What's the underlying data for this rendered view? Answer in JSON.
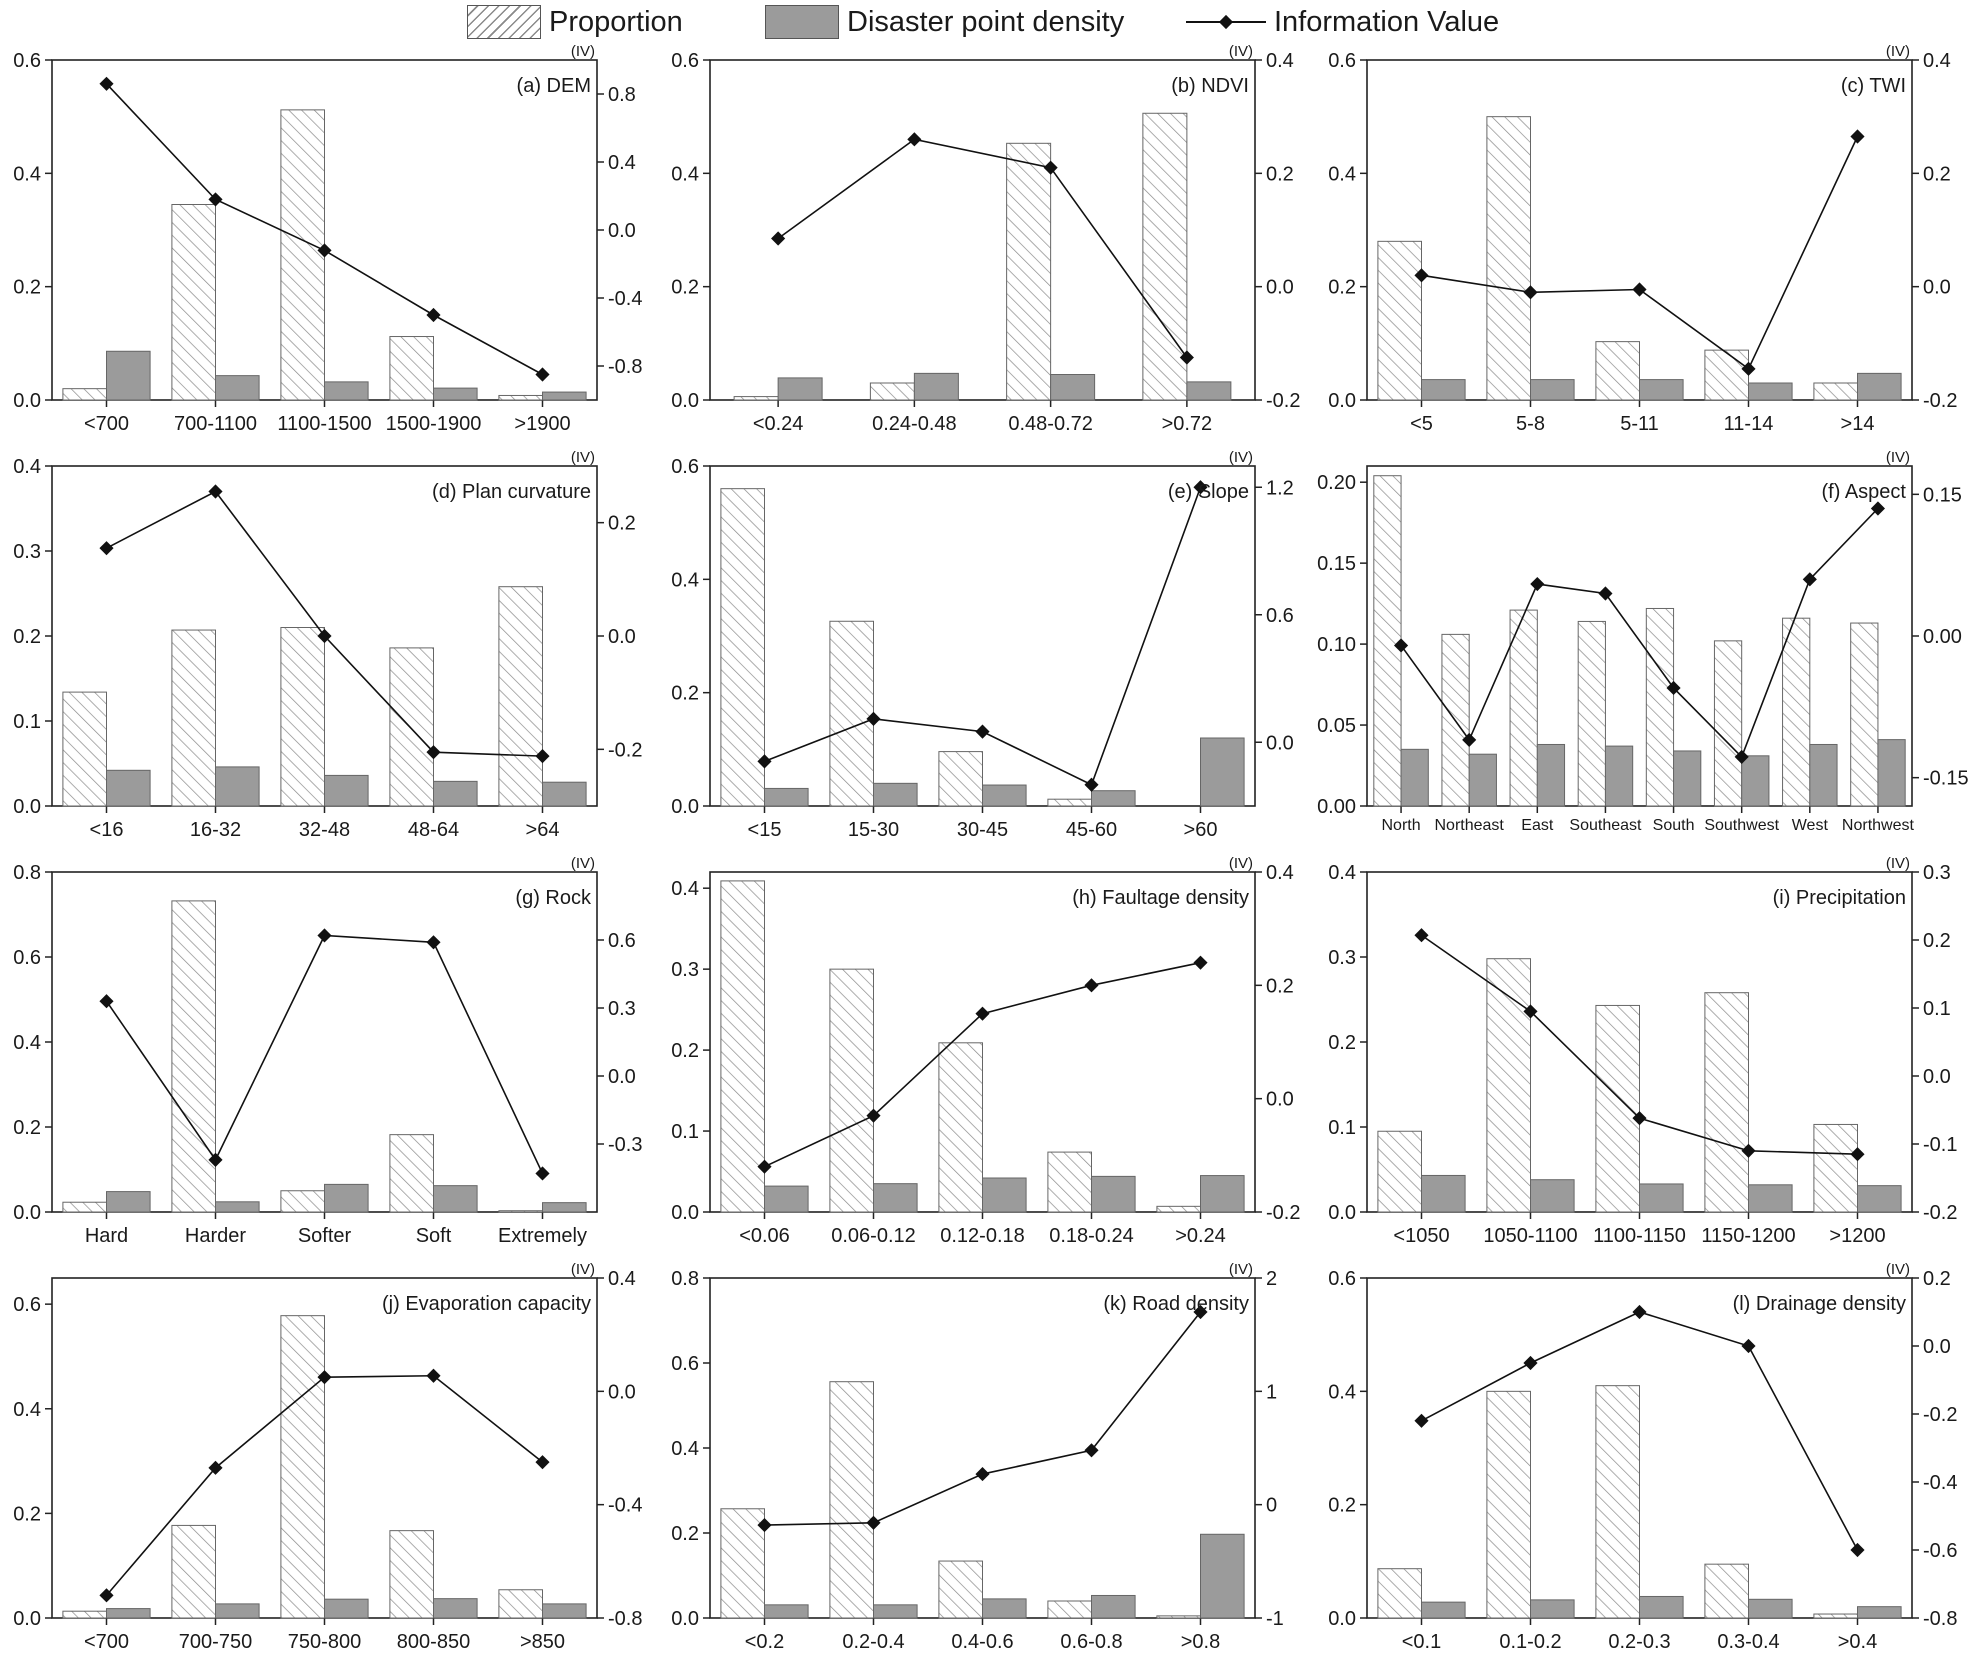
{
  "legend": {
    "proportion": "Proportion",
    "density": "Disaster point density",
    "iv": "Information Value"
  },
  "colors": {
    "hatch": "#8a8a8a",
    "bar_fill": "#9b9b9b",
    "line": "#111111",
    "axis": "#222222"
  },
  "chart_data": [
    {
      "type": "bar",
      "title": "(a) DEM",
      "iv_tag": "(IV)",
      "categories": [
        "<700",
        "700-1100",
        "1100-1500",
        "1500-1900",
        ">1900"
      ],
      "ylim": [
        0,
        0.6
      ],
      "yticks": [
        0.0,
        0.2,
        0.4,
        0.6
      ],
      "ytick_labels": [
        "0.0",
        "0.2",
        "0.4",
        "0.6"
      ],
      "y2lim": [
        -1.0,
        1.0
      ],
      "y2ticks": [
        -0.8,
        -0.4,
        0.0,
        0.4,
        0.8
      ],
      "y2tick_labels": [
        "-0.8",
        "-0.4",
        "0.0",
        "0.4",
        "0.8"
      ],
      "series": [
        {
          "name": "Proportion",
          "values": [
            0.02,
            0.345,
            0.512,
            0.112,
            0.008
          ]
        },
        {
          "name": "Disaster point density",
          "values": [
            0.086,
            0.043,
            0.032,
            0.021,
            0.014
          ]
        },
        {
          "name": "Information Value",
          "axis": "right",
          "values": [
            0.86,
            0.18,
            -0.12,
            -0.5,
            -0.85
          ]
        }
      ]
    },
    {
      "type": "bar",
      "title": "(b) NDVI",
      "iv_tag": "(IV)",
      "categories": [
        "<0.24",
        "0.24-0.48",
        "0.48-0.72",
        ">0.72"
      ],
      "ylim": [
        0,
        0.6
      ],
      "yticks": [
        0.0,
        0.2,
        0.4,
        0.6
      ],
      "ytick_labels": [
        "0.0",
        "0.2",
        "0.4",
        "0.6"
      ],
      "y2lim": [
        -0.2,
        0.4
      ],
      "y2ticks": [
        -0.2,
        0.0,
        0.2,
        0.4
      ],
      "y2tick_labels": [
        "-0.2",
        "0.0",
        "0.2",
        "0.4"
      ],
      "series": [
        {
          "name": "Proportion",
          "values": [
            0.006,
            0.03,
            0.453,
            0.506
          ]
        },
        {
          "name": "Disaster point density",
          "values": [
            0.039,
            0.047,
            0.045,
            0.032
          ]
        },
        {
          "name": "Information Value",
          "axis": "right",
          "values": [
            0.085,
            0.26,
            0.21,
            -0.125
          ]
        }
      ]
    },
    {
      "type": "bar",
      "title": "(c) TWI",
      "iv_tag": "(IV)",
      "categories": [
        "<5",
        "5-8",
        "5-11",
        "11-14",
        ">14"
      ],
      "ylim": [
        0,
        0.6
      ],
      "yticks": [
        0.0,
        0.2,
        0.4,
        0.6
      ],
      "ytick_labels": [
        "0.0",
        "0.2",
        "0.4",
        "0.6"
      ],
      "y2lim": [
        -0.2,
        0.4
      ],
      "y2ticks": [
        -0.2,
        0.0,
        0.2,
        0.4
      ],
      "y2tick_labels": [
        "-0.2",
        "0.0",
        "0.2",
        "0.4"
      ],
      "series": [
        {
          "name": "Proportion",
          "values": [
            0.28,
            0.5,
            0.103,
            0.088,
            0.03
          ]
        },
        {
          "name": "Disaster point density",
          "values": [
            0.036,
            0.036,
            0.036,
            0.03,
            0.047
          ]
        },
        {
          "name": "Information Value",
          "axis": "right",
          "values": [
            0.02,
            -0.01,
            -0.005,
            -0.145,
            0.265
          ]
        }
      ]
    },
    {
      "type": "bar",
      "title": "(d) Plan curvature",
      "iv_tag": "(IV)",
      "categories": [
        "<16",
        "16-32",
        "32-48",
        "48-64",
        ">64"
      ],
      "ylim": [
        0,
        0.4
      ],
      "yticks": [
        0.0,
        0.1,
        0.2,
        0.3,
        0.4
      ],
      "ytick_labels": [
        "0.0",
        "0.1",
        "0.2",
        "0.3",
        "0.4"
      ],
      "y2lim": [
        -0.3,
        0.3
      ],
      "y2ticks": [
        -0.2,
        0.0,
        0.2
      ],
      "y2tick_labels": [
        "-0.2",
        "0.0",
        "0.2"
      ],
      "series": [
        {
          "name": "Proportion",
          "values": [
            0.134,
            0.207,
            0.21,
            0.186,
            0.258
          ]
        },
        {
          "name": "Disaster point density",
          "values": [
            0.042,
            0.046,
            0.036,
            0.029,
            0.028
          ]
        },
        {
          "name": "Information Value",
          "axis": "right",
          "values": [
            0.155,
            0.255,
            0.0,
            -0.205,
            -0.212
          ]
        }
      ]
    },
    {
      "type": "bar",
      "title": "(e) Slope",
      "iv_tag": "(IV)",
      "categories": [
        "<15",
        "15-30",
        "30-45",
        "45-60",
        ">60"
      ],
      "ylim": [
        0,
        0.6
      ],
      "yticks": [
        0.0,
        0.2,
        0.4,
        0.6
      ],
      "ytick_labels": [
        "0.0",
        "0.2",
        "0.4",
        "0.6"
      ],
      "y2lim": [
        -0.3,
        1.3
      ],
      "y2ticks": [
        0.0,
        0.6,
        1.2
      ],
      "y2tick_labels": [
        "0.0",
        "0.6",
        "1.2"
      ],
      "series": [
        {
          "name": "Proportion",
          "values": [
            0.56,
            0.326,
            0.096,
            0.012,
            0.0
          ]
        },
        {
          "name": "Disaster point density",
          "values": [
            0.031,
            0.04,
            0.037,
            0.027,
            0.12
          ]
        },
        {
          "name": "Information Value",
          "axis": "right",
          "values": [
            -0.09,
            0.11,
            0.05,
            -0.2,
            1.2
          ]
        }
      ]
    },
    {
      "type": "bar",
      "title": "(f) Aspect",
      "iv_tag": "(IV)",
      "categories": [
        "North",
        "Northeast",
        "East",
        "Southeast",
        "South",
        "Southwest",
        "West",
        "Northwest"
      ],
      "ylim": [
        0,
        0.21
      ],
      "yticks": [
        0.0,
        0.05,
        0.1,
        0.15,
        0.2
      ],
      "ytick_labels": [
        "0.00",
        "0.05",
        "0.10",
        "0.15",
        "0.20"
      ],
      "y2lim": [
        -0.18,
        0.18
      ],
      "y2ticks": [
        -0.15,
        0.0,
        0.15
      ],
      "y2tick_labels": [
        "-0.15",
        "0.00",
        "0.15"
      ],
      "series": [
        {
          "name": "Proportion",
          "values": [
            0.204,
            0.106,
            0.121,
            0.114,
            0.122,
            0.102,
            0.116,
            0.113
          ]
        },
        {
          "name": "Disaster point density",
          "values": [
            0.035,
            0.032,
            0.038,
            0.037,
            0.034,
            0.031,
            0.038,
            0.041
          ]
        },
        {
          "name": "Information Value",
          "axis": "right",
          "values": [
            -0.01,
            -0.11,
            0.055,
            0.045,
            -0.055,
            -0.128,
            0.06,
            0.135
          ]
        }
      ]
    },
    {
      "type": "bar",
      "title": "(g) Rock",
      "iv_tag": "(IV)",
      "categories": [
        "Hard",
        "Harder",
        "Softer",
        "Soft",
        "Extremely"
      ],
      "ylim": [
        0,
        0.8
      ],
      "yticks": [
        0.0,
        0.2,
        0.4,
        0.6,
        0.8
      ],
      "ytick_labels": [
        "0.0",
        "0.2",
        "0.4",
        "0.6",
        "0.8"
      ],
      "y2lim": [
        -0.6,
        0.9
      ],
      "y2ticks": [
        -0.3,
        0.0,
        0.3,
        0.6
      ],
      "y2tick_labels": [
        "-0.3",
        "0.0",
        "0.3",
        "0.6"
      ],
      "series": [
        {
          "name": "Proportion",
          "values": [
            0.023,
            0.732,
            0.05,
            0.182,
            0.003
          ]
        },
        {
          "name": "Disaster point density",
          "values": [
            0.048,
            0.024,
            0.065,
            0.062,
            0.022
          ]
        },
        {
          "name": "Information Value",
          "axis": "right",
          "values": [
            0.33,
            -0.37,
            0.62,
            0.59,
            -0.43
          ]
        }
      ]
    },
    {
      "type": "bar",
      "title": "(h) Faultage density",
      "iv_tag": "(IV)",
      "categories": [
        "<0.06",
        "0.06-0.12",
        "0.12-0.18",
        "0.18-0.24",
        ">0.24"
      ],
      "ylim": [
        0,
        0.42
      ],
      "yticks": [
        0.0,
        0.1,
        0.2,
        0.3,
        0.4
      ],
      "ytick_labels": [
        "0.0",
        "0.1",
        "0.2",
        "0.3",
        "0.4"
      ],
      "y2lim": [
        -0.2,
        0.4
      ],
      "y2ticks": [
        -0.2,
        0.0,
        0.2,
        0.4
      ],
      "y2tick_labels": [
        "-0.2",
        "0.0",
        "0.2",
        "0.4"
      ],
      "series": [
        {
          "name": "Proportion",
          "values": [
            0.409,
            0.3,
            0.209,
            0.074,
            0.007
          ]
        },
        {
          "name": "Disaster point density",
          "values": [
            0.032,
            0.035,
            0.042,
            0.044,
            0.045
          ]
        },
        {
          "name": "Information Value",
          "axis": "right",
          "values": [
            -0.12,
            -0.03,
            0.15,
            0.2,
            0.24
          ]
        }
      ]
    },
    {
      "type": "bar",
      "title": "(i) Precipitation",
      "iv_tag": "(IV)",
      "categories": [
        "<1050",
        "1050-1100",
        "1100-1150",
        "1150-1200",
        ">1200"
      ],
      "ylim": [
        0,
        0.4
      ],
      "yticks": [
        0.0,
        0.1,
        0.2,
        0.3,
        0.4
      ],
      "ytick_labels": [
        "0.0",
        "0.1",
        "0.2",
        "0.3",
        "0.4"
      ],
      "y2lim": [
        -0.2,
        0.3
      ],
      "y2ticks": [
        -0.2,
        -0.1,
        0.0,
        0.1,
        0.2,
        0.3
      ],
      "y2tick_labels": [
        "-0.2",
        "-0.1",
        "0.0",
        "0.1",
        "0.2",
        "0.3"
      ],
      "series": [
        {
          "name": "Proportion",
          "values": [
            0.095,
            0.298,
            0.243,
            0.258,
            0.103
          ]
        },
        {
          "name": "Disaster point density",
          "values": [
            0.043,
            0.038,
            0.033,
            0.032,
            0.031
          ]
        },
        {
          "name": "Information Value",
          "axis": "right",
          "values": [
            0.207,
            0.095,
            -0.062,
            -0.11,
            -0.115
          ]
        }
      ]
    },
    {
      "type": "bar",
      "title": "(j) Evaporation capacity",
      "iv_tag": "(IV)",
      "categories": [
        "<700",
        "700-750",
        "750-800",
        "800-850",
        ">850"
      ],
      "ylim": [
        0,
        0.65
      ],
      "yticks": [
        0.0,
        0.2,
        0.4,
        0.6
      ],
      "ytick_labels": [
        "0.0",
        "0.2",
        "0.4",
        "0.6"
      ],
      "y2lim": [
        -0.8,
        0.4
      ],
      "y2ticks": [
        -0.8,
        -0.4,
        0.0,
        0.4
      ],
      "y2tick_labels": [
        "-0.8",
        "-0.4",
        "0.0",
        "0.4"
      ],
      "series": [
        {
          "name": "Proportion",
          "values": [
            0.013,
            0.177,
            0.578,
            0.167,
            0.054
          ]
        },
        {
          "name": "Disaster point density",
          "values": [
            0.018,
            0.027,
            0.036,
            0.037,
            0.027
          ]
        },
        {
          "name": "Information Value",
          "axis": "right",
          "values": [
            -0.72,
            -0.27,
            0.05,
            0.055,
            -0.25
          ]
        }
      ]
    },
    {
      "type": "bar",
      "title": "(k) Road density",
      "iv_tag": "(IV)",
      "categories": [
        "<0.2",
        "0.2-0.4",
        "0.4-0.6",
        "0.6-0.8",
        ">0.8"
      ],
      "ylim": [
        0,
        0.8
      ],
      "yticks": [
        0.0,
        0.2,
        0.4,
        0.6,
        0.8
      ],
      "ytick_labels": [
        "0.0",
        "0.2",
        "0.4",
        "0.6",
        "0.8"
      ],
      "y2lim": [
        -1.0,
        2.0
      ],
      "y2ticks": [
        -1,
        0,
        1,
        2
      ],
      "y2tick_labels": [
        "-1",
        "0",
        "1",
        "2"
      ],
      "series": [
        {
          "name": "Proportion",
          "values": [
            0.257,
            0.556,
            0.134,
            0.04,
            0.005
          ]
        },
        {
          "name": "Disaster point density",
          "values": [
            0.031,
            0.031,
            0.045,
            0.053,
            0.197
          ]
        },
        {
          "name": "Information Value",
          "axis": "right",
          "values": [
            -0.18,
            -0.16,
            0.27,
            0.48,
            1.7
          ]
        }
      ]
    },
    {
      "type": "bar",
      "title": "(l) Drainage density",
      "iv_tag": "(IV)",
      "categories": [
        "<0.1",
        "0.1-0.2",
        "0.2-0.3",
        "0.3-0.4",
        ">0.4"
      ],
      "ylim": [
        0,
        0.6
      ],
      "yticks": [
        0.0,
        0.2,
        0.4,
        0.6
      ],
      "ytick_labels": [
        "0.0",
        "0.2",
        "0.4",
        "0.6"
      ],
      "y2lim": [
        -0.8,
        0.2
      ],
      "y2ticks": [
        -0.8,
        -0.6,
        -0.4,
        -0.2,
        0.0,
        0.2
      ],
      "y2tick_labels": [
        "-0.8",
        "-0.6",
        "-0.4",
        "-0.2",
        "0.0",
        "0.2"
      ],
      "series": [
        {
          "name": "Proportion",
          "values": [
            0.087,
            0.4,
            0.41,
            0.095,
            0.007
          ]
        },
        {
          "name": "Disaster point density",
          "values": [
            0.028,
            0.032,
            0.038,
            0.033,
            0.02
          ]
        },
        {
          "name": "Information Value",
          "axis": "right",
          "values": [
            -0.22,
            -0.05,
            0.1,
            0.0,
            -0.6
          ]
        }
      ]
    }
  ]
}
